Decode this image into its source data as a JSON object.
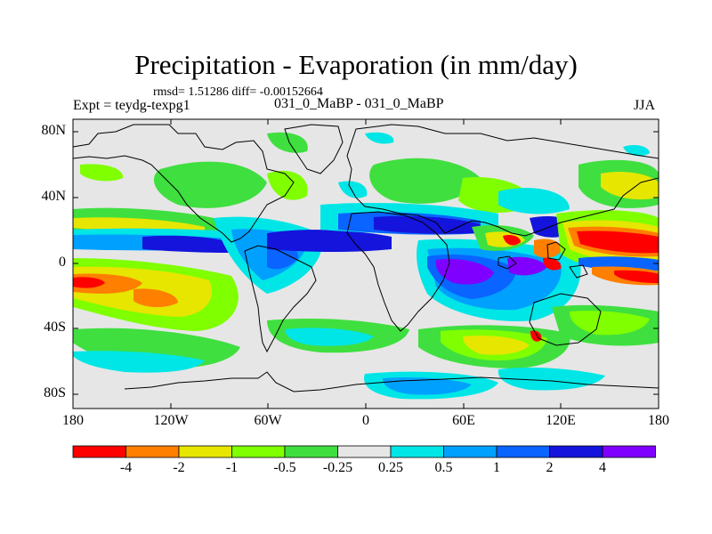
{
  "title": "Precipitation - Evaporation (in mm/day)",
  "stats": "rmsd= 1.51286 diff= -0.00152664",
  "experiment": "Expt = teydg-texpg1",
  "difference_label": "031_0_MaBP - 031_0_MaBP",
  "season": "JJA",
  "y_axis": {
    "ticks": [
      "80N",
      "40N",
      "0",
      "40S",
      "80S"
    ]
  },
  "x_axis": {
    "ticks": [
      "180",
      "120W",
      "60W",
      "0",
      "60E",
      "120E",
      "180"
    ]
  },
  "colorbar": {
    "labels": [
      "-4",
      "-2",
      "-1",
      "-0.5",
      "-0.25",
      "0.25",
      "0.5",
      "1",
      "2",
      "4"
    ],
    "colors": [
      "#ff0000",
      "#ff7f00",
      "#e6e600",
      "#7fff00",
      "#3fdf3f",
      "#e6e6e6",
      "#00e6e6",
      "#00a0ff",
      "#0a64ff",
      "#1414dc",
      "#7f00ff"
    ]
  },
  "palette": {
    "neutral": "#e6e6e6",
    "light_blue": "#00e6e6",
    "mid_blue": "#00a0ff",
    "blue": "#0a64ff",
    "dark_blue": "#1414dc",
    "purple": "#7f00ff",
    "lime": "#7fff00",
    "green": "#3fdf3f",
    "yellow": "#e6e600",
    "orange": "#ff7f00",
    "red": "#ff0000"
  }
}
